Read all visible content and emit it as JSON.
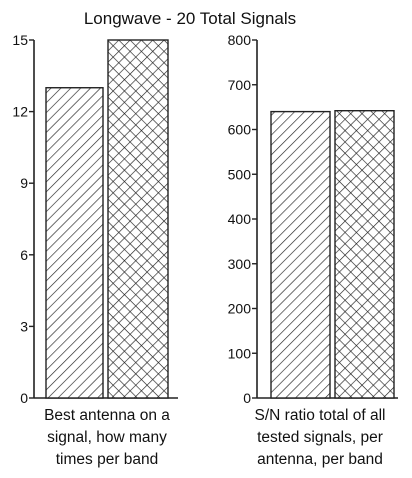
{
  "title": "Longwave - 20 Total Signals",
  "colors": {
    "ink": "#222222",
    "background": "#ffffff"
  },
  "chart_data": [
    {
      "type": "bar",
      "title": "Longwave - 20 Total Signals",
      "xlabel": "Best antenna on a signal, how many times per band",
      "ylabel": "",
      "ylim": [
        0,
        15
      ],
      "yticks": [
        0,
        3,
        6,
        9,
        12,
        15
      ],
      "categories": [
        "",
        ""
      ],
      "patterns": [
        "diagonal-hatch",
        "crosshatch"
      ],
      "values": [
        13,
        15
      ],
      "grid": false,
      "legend": "none"
    },
    {
      "type": "bar",
      "xlabel": "S/N ratio total of all tested signals, per antenna, per band",
      "ylabel": "",
      "ylim": [
        0,
        800
      ],
      "yticks": [
        0,
        100,
        200,
        300,
        400,
        500,
        600,
        700,
        800
      ],
      "categories": [
        "",
        ""
      ],
      "patterns": [
        "diagonal-hatch",
        "crosshatch"
      ],
      "values": [
        640,
        642
      ],
      "grid": false,
      "legend": "none"
    }
  ],
  "captions": {
    "left": [
      "Best antenna on a",
      "signal, how many",
      "times per band"
    ],
    "right": [
      "S/N ratio total of all",
      "tested signals, per",
      "antenna, per band"
    ]
  }
}
